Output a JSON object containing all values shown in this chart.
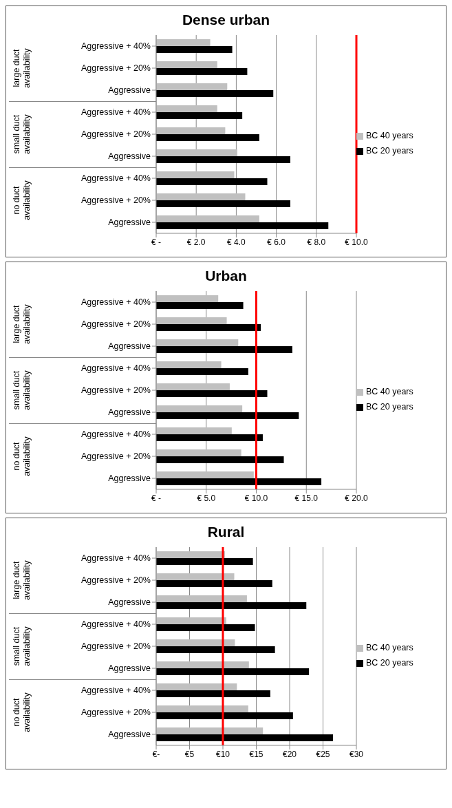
{
  "chart_data": [
    {
      "type": "bar",
      "orientation": "horizontal",
      "title": "Dense urban",
      "categories": [
        "Aggressive + 40%",
        "Aggressive + 20%",
        "Aggressive",
        "Aggressive + 40%",
        "Aggressive + 20%",
        "Aggressive",
        "Aggressive + 40%",
        "Aggressive + 20%",
        "Aggressive"
      ],
      "series": [
        {
          "name": "BC 40 years",
          "color": "#c0c0c0",
          "values": [
            2.7,
            3.05,
            3.55,
            3.05,
            3.45,
            4.05,
            3.9,
            4.45,
            5.15
          ]
        },
        {
          "name": "BC 20 years",
          "color": "#000000",
          "values": [
            3.8,
            4.55,
            5.85,
            4.3,
            5.15,
            6.7,
            5.55,
            6.7,
            8.6
          ]
        }
      ],
      "xlim": [
        0,
        10
      ],
      "xticks": [
        {
          "value": 0,
          "label": "€ -"
        },
        {
          "value": 2,
          "label": "€ 2.0"
        },
        {
          "value": 4,
          "label": "€ 4.0"
        },
        {
          "value": 6,
          "label": "€ 6.0"
        },
        {
          "value": 8,
          "label": "€ 8.0"
        },
        {
          "value": 10,
          "label": "€ 10.0"
        }
      ],
      "ref_lines": [
        {
          "axis": "x",
          "value": 10,
          "color": "#ff0000"
        }
      ],
      "annotations": [
        "large duct availability",
        "small duct availability",
        "no duct availability"
      ],
      "grid": "x",
      "legend": "right"
    },
    {
      "type": "bar",
      "orientation": "horizontal",
      "title": "Urban",
      "categories": [
        "Aggressive + 40%",
        "Aggressive + 20%",
        "Aggressive",
        "Aggressive + 40%",
        "Aggressive + 20%",
        "Aggressive",
        "Aggressive + 40%",
        "Aggressive + 20%",
        "Aggressive"
      ],
      "series": [
        {
          "name": "BC 40 years",
          "color": "#c0c0c0",
          "values": [
            6.2,
            7.05,
            8.2,
            6.5,
            7.35,
            8.6,
            7.55,
            8.5,
            9.75
          ]
        },
        {
          "name": "BC 20 years",
          "color": "#000000",
          "values": [
            8.7,
            10.45,
            13.6,
            9.2,
            11.1,
            14.25,
            10.65,
            12.75,
            16.5
          ]
        }
      ],
      "xlim": [
        0,
        20
      ],
      "xticks": [
        {
          "value": 0,
          "label": "€ -"
        },
        {
          "value": 5,
          "label": "€ 5.0"
        },
        {
          "value": 10,
          "label": "€ 10.0"
        },
        {
          "value": 15,
          "label": "€ 15.0"
        },
        {
          "value": 20,
          "label": "€ 20.0"
        }
      ],
      "ref_lines": [
        {
          "axis": "x",
          "value": 10,
          "color": "#ff0000"
        }
      ],
      "annotations": [
        "large duct availability",
        "small duct availability",
        "no duct availability"
      ],
      "grid": "x",
      "legend": "right"
    },
    {
      "type": "bar",
      "orientation": "horizontal",
      "title": "Rural",
      "categories": [
        "Aggressive + 40%",
        "Aggressive + 20%",
        "Aggressive",
        "Aggressive + 40%",
        "Aggressive + 20%",
        "Aggressive",
        "Aggressive + 40%",
        "Aggressive + 20%",
        "Aggressive"
      ],
      "series": [
        {
          "name": "BC 40 years",
          "color": "#c0c0c0",
          "values": [
            10.3,
            11.7,
            13.6,
            10.5,
            11.8,
            13.9,
            12.1,
            13.8,
            16.0
          ]
        },
        {
          "name": "BC 20 years",
          "color": "#000000",
          "values": [
            14.5,
            17.4,
            22.5,
            14.8,
            17.8,
            22.9,
            17.1,
            20.5,
            26.5
          ]
        }
      ],
      "xlim": [
        0,
        30
      ],
      "xticks": [
        {
          "value": 0,
          "label": "€-"
        },
        {
          "value": 5,
          "label": "€5"
        },
        {
          "value": 10,
          "label": "€10"
        },
        {
          "value": 15,
          "label": "€15"
        },
        {
          "value": 20,
          "label": "€20"
        },
        {
          "value": 25,
          "label": "€25"
        },
        {
          "value": 30,
          "label": "€30"
        }
      ],
      "ref_lines": [
        {
          "axis": "x",
          "value": 10,
          "color": "#ff0000"
        }
      ],
      "annotations": [
        "large duct availability",
        "small duct availability",
        "no duct availability"
      ],
      "grid": "x",
      "legend": "right"
    }
  ]
}
